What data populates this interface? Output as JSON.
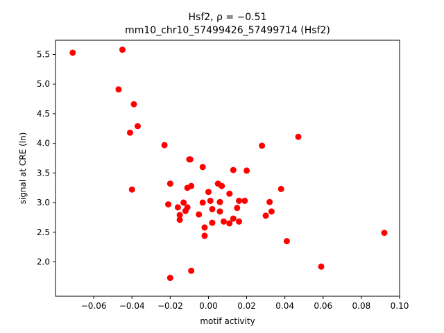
{
  "chart_data": {
    "type": "scatter",
    "title_line1": "Hsf2, ρ = −0.51",
    "title_line2": "mm10_chr10_57499426_57499714 (Hsf2)",
    "xlabel": "motif activity",
    "ylabel": "signal at CRE (ln)",
    "xlim": [
      -0.08,
      0.1
    ],
    "ylim": [
      1.42,
      5.74
    ],
    "xticks": [
      -0.06,
      -0.04,
      -0.02,
      0.0,
      0.02,
      0.04,
      0.06,
      0.08,
      0.1
    ],
    "xtick_labels": [
      "−0.06",
      "−0.04",
      "−0.02",
      "0.00",
      "0.02",
      "0.04",
      "0.06",
      "0.08",
      "0.10"
    ],
    "yticks": [
      2.0,
      2.5,
      3.0,
      3.5,
      4.0,
      4.5,
      5.0,
      5.5
    ],
    "ytick_labels": [
      "2.0",
      "2.5",
      "3.0",
      "3.5",
      "4.0",
      "4.5",
      "5.0",
      "5.5"
    ],
    "marker_color": "#ff0000",
    "grid": false,
    "points": [
      {
        "x": -0.071,
        "y": 5.53
      },
      {
        "x": -0.045,
        "y": 5.58
      },
      {
        "x": -0.047,
        "y": 4.91
      },
      {
        "x": -0.039,
        "y": 4.66
      },
      {
        "x": -0.037,
        "y": 4.29
      },
      {
        "x": -0.041,
        "y": 4.18
      },
      {
        "x": -0.04,
        "y": 3.22
      },
      {
        "x": -0.023,
        "y": 3.97
      },
      {
        "x": -0.02,
        "y": 3.32
      },
      {
        "x": -0.021,
        "y": 2.97
      },
      {
        "x": -0.02,
        "y": 1.73
      },
      {
        "x": -0.016,
        "y": 2.92
      },
      {
        "x": -0.015,
        "y": 2.71
      },
      {
        "x": -0.015,
        "y": 2.79
      },
      {
        "x": -0.013,
        "y": 3.0
      },
      {
        "x": -0.012,
        "y": 2.86
      },
      {
        "x": -0.011,
        "y": 2.92
      },
      {
        "x": -0.011,
        "y": 3.25
      },
      {
        "x": -0.01,
        "y": 3.73
      },
      {
        "x": -0.0095,
        "y": 3.73
      },
      {
        "x": -0.009,
        "y": 3.28
      },
      {
        "x": -0.009,
        "y": 1.85
      },
      {
        "x": -0.005,
        "y": 2.8
      },
      {
        "x": -0.003,
        "y": 3.6
      },
      {
        "x": -0.003,
        "y": 3.0
      },
      {
        "x": -0.002,
        "y": 2.58
      },
      {
        "x": -0.002,
        "y": 2.44
      },
      {
        "x": 0.0,
        "y": 3.18
      },
      {
        "x": 0.001,
        "y": 3.03
      },
      {
        "x": 0.002,
        "y": 2.89
      },
      {
        "x": 0.002,
        "y": 2.66
      },
      {
        "x": 0.005,
        "y": 3.32
      },
      {
        "x": 0.006,
        "y": 3.01
      },
      {
        "x": 0.006,
        "y": 2.85
      },
      {
        "x": 0.007,
        "y": 3.28
      },
      {
        "x": 0.008,
        "y": 2.68
      },
      {
        "x": 0.011,
        "y": 3.15
      },
      {
        "x": 0.011,
        "y": 2.65
      },
      {
        "x": 0.013,
        "y": 3.55
      },
      {
        "x": 0.013,
        "y": 2.73
      },
      {
        "x": 0.015,
        "y": 2.91
      },
      {
        "x": 0.016,
        "y": 3.03
      },
      {
        "x": 0.016,
        "y": 2.68
      },
      {
        "x": 0.019,
        "y": 3.03
      },
      {
        "x": 0.02,
        "y": 3.54
      },
      {
        "x": 0.028,
        "y": 3.96
      },
      {
        "x": 0.03,
        "y": 2.78
      },
      {
        "x": 0.032,
        "y": 3.01
      },
      {
        "x": 0.033,
        "y": 2.85
      },
      {
        "x": 0.038,
        "y": 3.23
      },
      {
        "x": 0.041,
        "y": 2.35
      },
      {
        "x": 0.047,
        "y": 4.11
      },
      {
        "x": 0.059,
        "y": 1.92
      },
      {
        "x": 0.092,
        "y": 2.49
      }
    ]
  }
}
